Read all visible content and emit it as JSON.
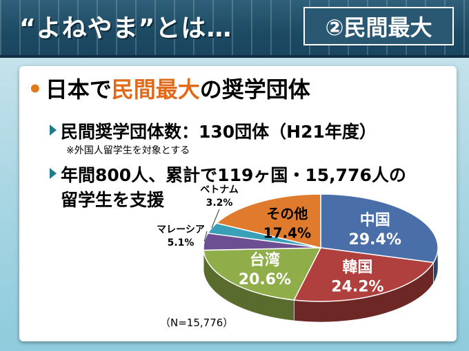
{
  "header": {
    "title": "“よねやま”とは…",
    "badge": "②民間最大"
  },
  "bullet": {
    "prefix": "日本で",
    "highlight": "民間最大",
    "suffix": "の奨学団体"
  },
  "sub1": {
    "text": "民間奨学団体数：130団体（H21年度）",
    "note": "※外国人留学生を対象とする"
  },
  "sub2": {
    "line1": "年間800人、累計で119ヶ国・15,776人の",
    "line2": "留学生を支援"
  },
  "chart_data": {
    "type": "pie",
    "slices": [
      {
        "label": "中国",
        "value": 29.4,
        "value_label": "29.4%",
        "color": "#4a6fa8"
      },
      {
        "label": "韓国",
        "value": 24.2,
        "value_label": "24.2%",
        "color": "#b0403d"
      },
      {
        "label": "台湾",
        "value": 20.6,
        "value_label": "20.6%",
        "color": "#8fae4a"
      },
      {
        "label": "マレーシア",
        "value": 5.1,
        "value_label": "5.1%",
        "color": "#6b4f92"
      },
      {
        "label": "ベトナム",
        "value": 3.2,
        "value_label": "3.2%",
        "color": "#3aa0b8"
      },
      {
        "label": "その他",
        "value": 17.4,
        "value_label": "17.4%",
        "color": "#e07b2e"
      }
    ],
    "note": "（N=15,776）"
  }
}
